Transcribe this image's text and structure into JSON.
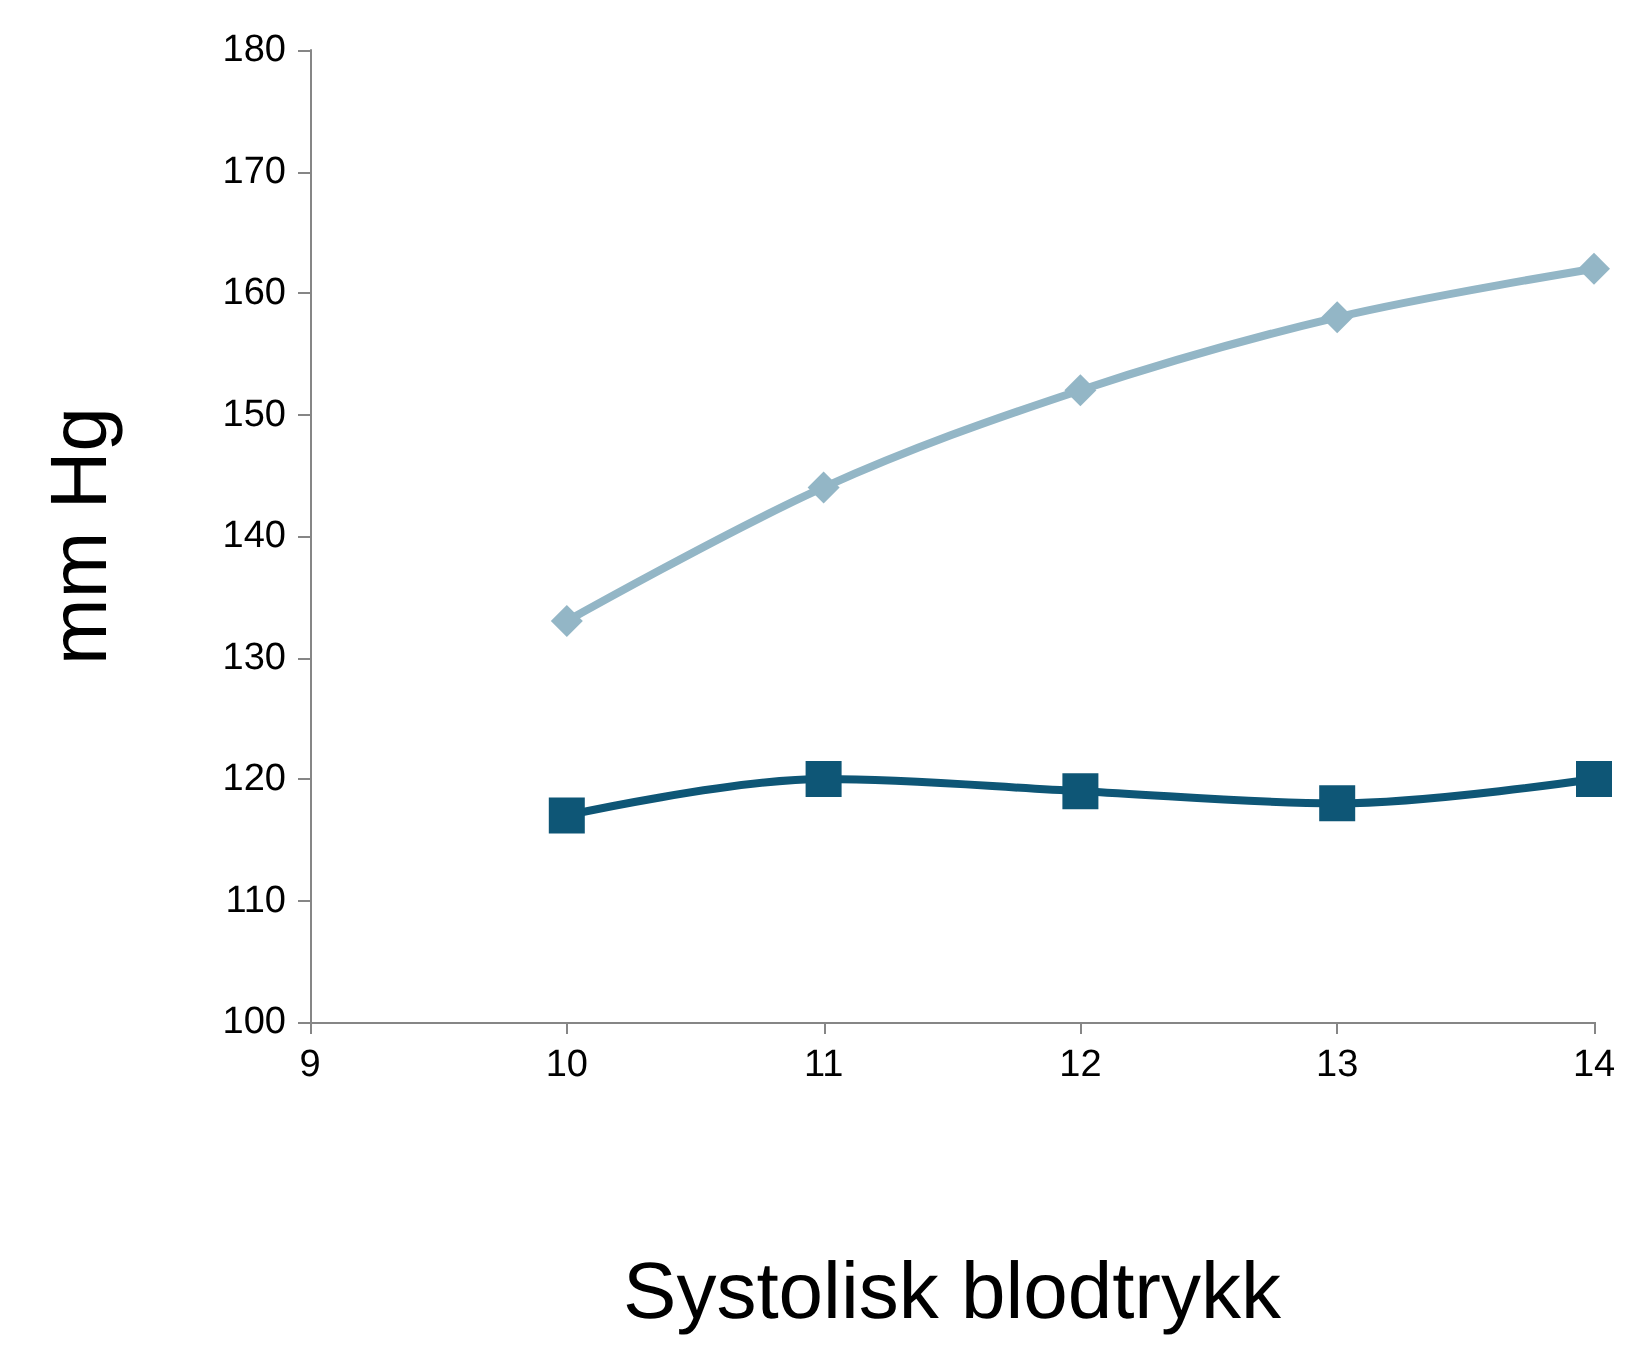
{
  "chart_data": {
    "type": "line",
    "xlabel": "Systolisk blodtrykk",
    "ylabel": "mm Hg",
    "x": [
      10,
      11,
      12,
      13,
      14
    ],
    "series": [
      {
        "color": "#93b6c6",
        "marker": "diamond",
        "values": [
          133,
          144,
          152,
          158,
          162
        ]
      },
      {
        "color": "#0e5676",
        "marker": "square",
        "values": [
          117,
          120,
          119,
          118,
          120
        ]
      }
    ],
    "xlim": [
      9,
      14
    ],
    "xticks": [
      9,
      10,
      11,
      12,
      13,
      14
    ],
    "ylim": [
      100,
      180
    ],
    "yticks": [
      100,
      110,
      120,
      130,
      140,
      150,
      160,
      170,
      180
    ]
  }
}
